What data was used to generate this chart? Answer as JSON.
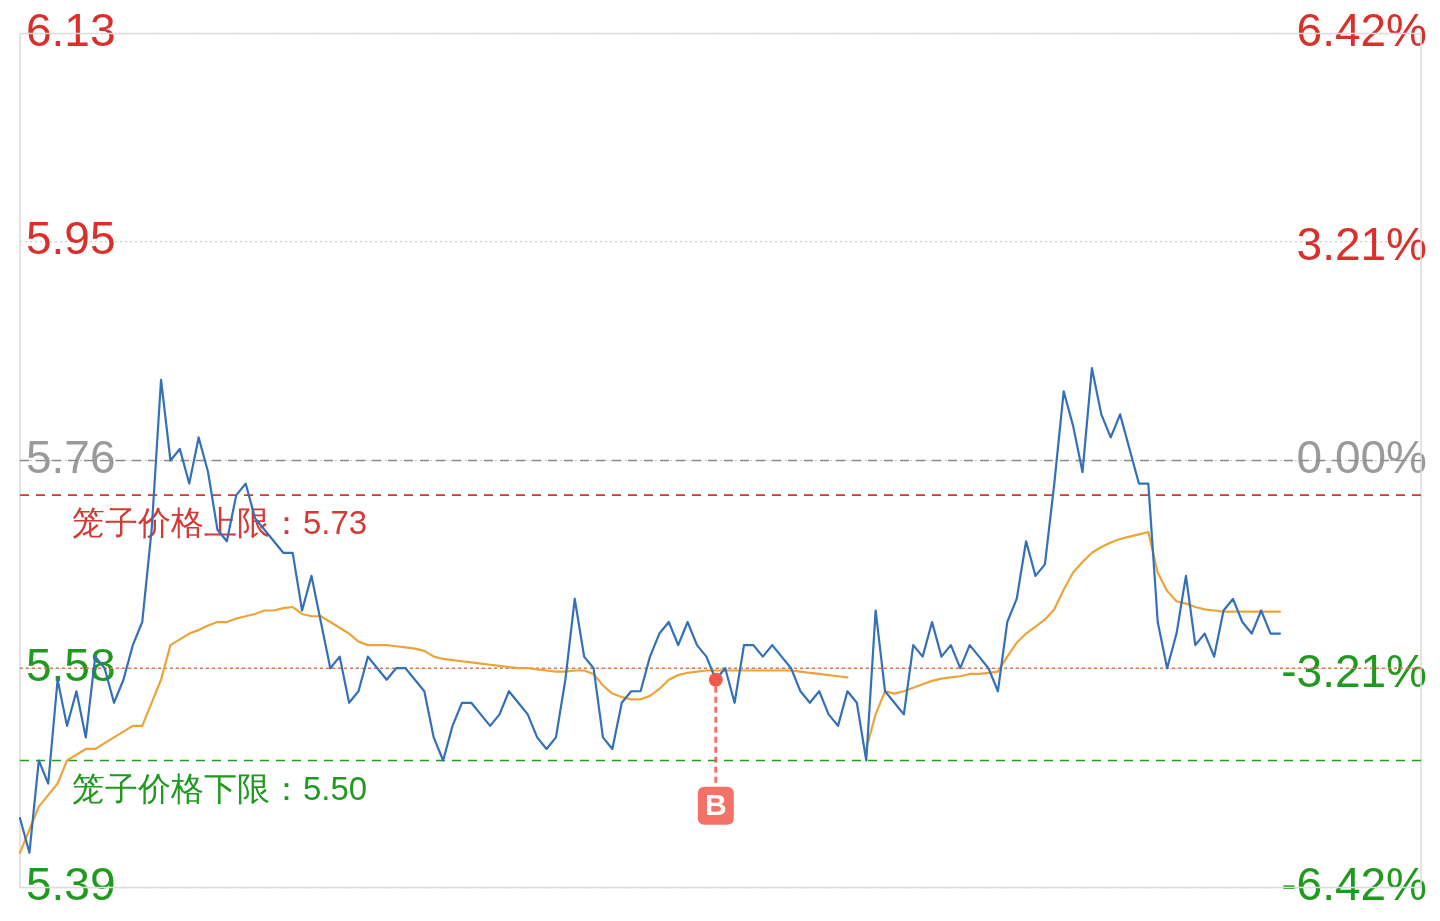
{
  "chart_data": {
    "type": "line",
    "categories": [
      null,
      null,
      null,
      null,
      null,
      null,
      null,
      null,
      null,
      null,
      null,
      null,
      null,
      null,
      null,
      null,
      null,
      null,
      null,
      null,
      null,
      null,
      null,
      null,
      null,
      null,
      null,
      null,
      null,
      null,
      null,
      null,
      null,
      null,
      null,
      null,
      null,
      null,
      null,
      null,
      null,
      null,
      null,
      null,
      null,
      null,
      null,
      null,
      null,
      null,
      null,
      null,
      null,
      null,
      null,
      null,
      null,
      null,
      null,
      null,
      null,
      null,
      null,
      null,
      null,
      null,
      null,
      null,
      null,
      null,
      null,
      null,
      null,
      null,
      null,
      null,
      null,
      null,
      null,
      null,
      null,
      null,
      null,
      null,
      null,
      null,
      null,
      null,
      null,
      null,
      null,
      null,
      null,
      null,
      null,
      null,
      null,
      null,
      null,
      null,
      null,
      null,
      null,
      null,
      null,
      null,
      null,
      null,
      null,
      null,
      null,
      null,
      null,
      null,
      null,
      null,
      null,
      null,
      null,
      null,
      null,
      null,
      null,
      null,
      null,
      null,
      null,
      null,
      null,
      null,
      null,
      null,
      null,
      null,
      null,
      null,
      null,
      null,
      null,
      null,
      null,
      null,
      null,
      null,
      null,
      null,
      null,
      null,
      null,
      null
    ],
    "ylim": [
      5.39,
      6.13
    ],
    "yticks": [
      5.39,
      5.58,
      5.76,
      5.95,
      6.13
    ],
    "y2lim": [
      -6.42,
      6.42
    ],
    "y2ticks": [
      {
        "value": -6.42,
        "label": "-6.42%"
      },
      {
        "value": -3.21,
        "label": "-3.21%"
      },
      {
        "value": 0,
        "label": "0.00%"
      },
      {
        "value": 3.21,
        "label": "3.21%"
      },
      {
        "value": 6.42,
        "label": "6.42%"
      }
    ],
    "tick_labels": "y",
    "grid": "y",
    "series": [
      {
        "color": "#3470b8",
        "values": [
          5.45,
          5.42,
          5.5,
          5.48,
          5.57,
          5.53,
          5.56,
          5.52,
          5.59,
          5.58,
          5.55,
          5.57,
          5.6,
          5.62,
          5.7,
          5.83,
          5.76,
          5.77,
          5.74,
          5.78,
          5.75,
          5.7,
          5.69,
          5.73,
          5.74,
          5.71,
          5.7,
          5.69,
          5.68,
          5.68,
          5.63,
          5.66,
          5.62,
          5.58,
          5.59,
          5.55,
          5.56,
          5.59,
          5.58,
          5.57,
          5.58,
          5.58,
          5.57,
          5.56,
          5.52,
          5.5,
          5.53,
          5.55,
          5.55,
          5.54,
          5.53,
          5.54,
          5.56,
          5.55,
          5.54,
          5.52,
          5.51,
          5.52,
          5.57,
          5.64,
          5.59,
          5.58,
          5.52,
          5.51,
          5.55,
          5.56,
          5.56,
          5.59,
          5.61,
          5.62,
          5.6,
          5.62,
          5.6,
          5.59,
          5.57,
          5.58,
          5.55,
          5.6,
          5.6,
          5.59,
          5.6,
          5.59,
          5.58,
          5.56,
          5.55,
          5.56,
          5.54,
          5.53,
          5.56,
          5.55,
          5.5,
          5.63,
          5.56,
          5.55,
          5.54,
          5.6,
          5.59,
          5.62,
          5.59,
          5.6,
          5.58,
          5.6,
          5.59,
          5.58,
          5.56,
          5.62,
          5.64,
          5.69,
          5.66,
          5.67,
          5.74,
          5.82,
          5.79,
          5.75,
          5.84,
          5.8,
          5.78,
          5.8,
          5.77,
          5.74,
          5.74,
          5.62,
          5.58,
          5.61,
          5.66,
          5.6,
          5.61,
          5.59,
          5.63,
          5.64,
          5.62,
          5.61,
          5.63,
          5.61,
          5.61,
          null,
          null,
          null,
          null,
          null,
          null,
          null,
          null,
          null,
          null,
          null,
          null,
          null,
          null,
          null
        ]
      },
      {
        "color": "#eca33a",
        "values": [
          5.42,
          5.44,
          5.46,
          5.47,
          5.48,
          5.5,
          5.505,
          5.51,
          5.51,
          5.515,
          5.52,
          5.525,
          5.53,
          5.53,
          5.55,
          5.57,
          5.6,
          5.605,
          5.61,
          5.613,
          5.617,
          5.62,
          5.62,
          5.623,
          5.625,
          5.627,
          5.63,
          5.63,
          5.632,
          5.633,
          5.627,
          5.625,
          5.625,
          5.62,
          5.615,
          5.61,
          5.603,
          5.6,
          5.6,
          5.6,
          5.599,
          5.598,
          5.597,
          5.595,
          5.59,
          5.588,
          5.587,
          5.586,
          5.585,
          5.584,
          5.583,
          5.582,
          5.581,
          5.58,
          5.58,
          5.579,
          5.578,
          5.577,
          5.577,
          5.578,
          5.578,
          5.575,
          5.565,
          5.558,
          5.555,
          5.553,
          5.553,
          5.556,
          5.562,
          5.57,
          5.574,
          5.576,
          5.577,
          5.578,
          5.578,
          5.578,
          5.578,
          5.578,
          5.578,
          5.578,
          5.578,
          5.578,
          5.578,
          5.577,
          5.576,
          5.575,
          5.574,
          5.573,
          5.572,
          null,
          5.51,
          5.54,
          5.56,
          5.558,
          5.56,
          5.563,
          5.566,
          5.569,
          5.571,
          5.572,
          5.573,
          5.575,
          5.575,
          5.576,
          5.577,
          5.59,
          5.602,
          5.61,
          5.616,
          5.622,
          5.631,
          5.648,
          5.663,
          5.672,
          5.68,
          5.685,
          5.689,
          5.692,
          5.694,
          5.696,
          5.698,
          5.663,
          5.647,
          5.638,
          5.636,
          5.633,
          5.631,
          5.63,
          5.629,
          5.629,
          5.629,
          5.629,
          5.629,
          5.629,
          5.629,
          null,
          null,
          null,
          null,
          null,
          null,
          null,
          null,
          null,
          null,
          null,
          null,
          null,
          null,
          null
        ]
      },
      {
        "type": "scatter",
        "marker": "circle",
        "color": "#f2584c",
        "values": [
          null,
          null,
          null,
          null,
          null,
          null,
          null,
          null,
          null,
          null,
          null,
          null,
          null,
          null,
          null,
          null,
          null,
          null,
          null,
          null,
          null,
          null,
          null,
          null,
          null,
          null,
          null,
          null,
          null,
          null,
          null,
          null,
          null,
          null,
          null,
          null,
          null,
          null,
          null,
          null,
          null,
          null,
          null,
          null,
          null,
          null,
          null,
          null,
          null,
          null,
          null,
          null,
          null,
          null,
          null,
          null,
          null,
          null,
          null,
          null,
          null,
          null,
          null,
          null,
          null,
          null,
          null,
          null,
          null,
          null,
          null,
          null,
          null,
          null,
          5.57,
          null,
          null,
          null,
          null,
          null,
          null,
          null,
          null,
          null,
          null,
          null,
          null,
          null,
          null,
          null,
          null,
          null,
          null,
          null,
          null,
          null,
          null,
          null,
          null,
          null,
          null,
          null,
          null,
          null,
          null,
          null,
          null,
          null,
          null,
          null,
          null,
          null,
          null,
          null,
          null,
          null,
          null,
          null,
          null,
          null,
          null,
          null,
          null,
          null,
          null,
          null,
          null,
          null,
          null,
          null,
          null,
          null,
          null,
          null,
          null,
          null,
          null,
          null,
          null,
          null,
          null,
          null,
          null,
          null,
          null,
          null,
          null,
          null,
          null,
          null
        ],
        "value_labels": [
          null,
          null,
          null,
          null,
          null,
          null,
          null,
          null,
          null,
          null,
          null,
          null,
          null,
          null,
          null,
          null,
          null,
          null,
          null,
          null,
          null,
          null,
          null,
          null,
          null,
          null,
          null,
          null,
          null,
          null,
          null,
          null,
          null,
          null,
          null,
          null,
          null,
          null,
          null,
          null,
          null,
          null,
          null,
          null,
          null,
          null,
          null,
          null,
          null,
          null,
          null,
          null,
          null,
          null,
          null,
          null,
          null,
          null,
          null,
          null,
          null,
          null,
          null,
          null,
          null,
          null,
          null,
          null,
          null,
          null,
          null,
          null,
          null,
          null,
          "B",
          null,
          null,
          null,
          null,
          null,
          null,
          null,
          null,
          null,
          null,
          null,
          null,
          null,
          null,
          null,
          null,
          null,
          null,
          null,
          null,
          null,
          null,
          null,
          null,
          null,
          null,
          null,
          null,
          null,
          null,
          null,
          null,
          null,
          null,
          null,
          null,
          null,
          null,
          null,
          null,
          null,
          null,
          null,
          null,
          null,
          null,
          null,
          null,
          null,
          null,
          null,
          null,
          null,
          null,
          null,
          null,
          null,
          null,
          null,
          null,
          null,
          null,
          null,
          null,
          null,
          null,
          null,
          null,
          null,
          null,
          null,
          null,
          null,
          null,
          null
        ]
      }
    ],
    "ref_lines": [
      {
        "axis": "y",
        "value": 5.76,
        "color": "#8c8c8c",
        "line_style": "dashed"
      },
      {
        "axis": "y",
        "value": 5.73,
        "label": "笼子价格上限：5.73",
        "color": "#d23a36",
        "line_style": "dashed"
      },
      {
        "axis": "y",
        "value": 5.58,
        "color": "#cf7f57",
        "line_style": "dotted"
      },
      {
        "axis": "y",
        "value": 5.5,
        "label": "笼子价格下限：5.50",
        "color": "#1f9a1f",
        "line_style": "dashed"
      }
    ]
  }
}
